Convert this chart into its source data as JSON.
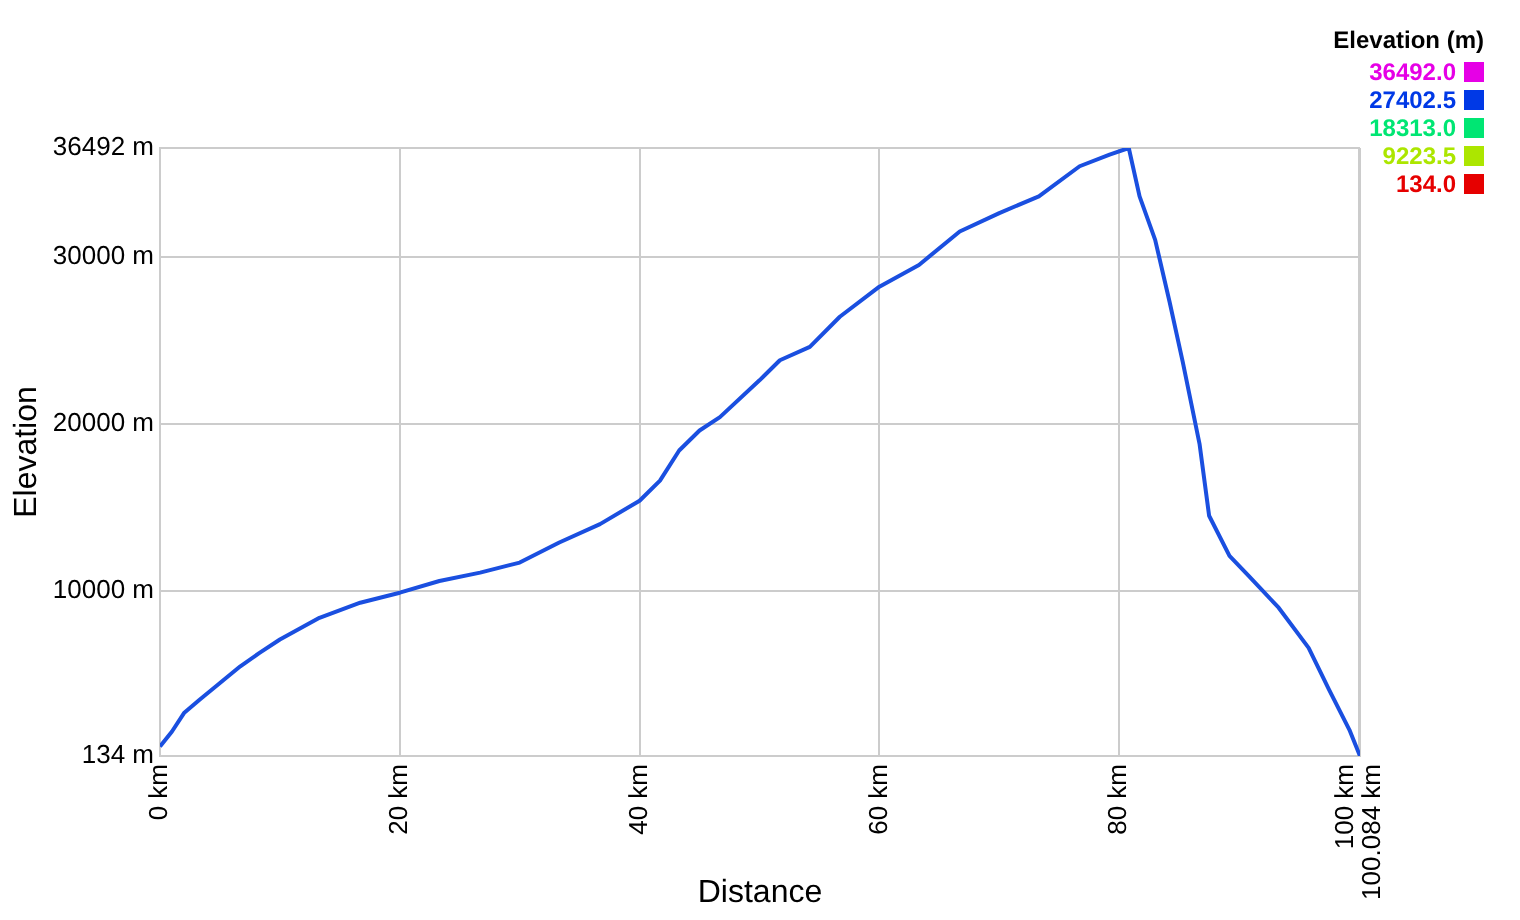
{
  "chart_data": {
    "type": "line",
    "xlabel": "Distance",
    "ylabel": "Elevation",
    "clabel": "Elevation (m)",
    "x": [
      0,
      1,
      2,
      3.3,
      5,
      6.7,
      8.3,
      10,
      13.3,
      16.7,
      20,
      23.3,
      26.7,
      30,
      33.3,
      36.7,
      40,
      41.7,
      43.3,
      45,
      46.7,
      50,
      51.7,
      54.2,
      56.7,
      60,
      63.3,
      66.7,
      70,
      73.3,
      76.7,
      79.2,
      80.8,
      81.7,
      83,
      84.2,
      85.3,
      86.7,
      87.5,
      89.2,
      90.8,
      93.3,
      95.8,
      97.5,
      99.2,
      100.084
    ],
    "values": [
      700,
      1600,
      2700,
      3500,
      4500,
      5500,
      6300,
      7100,
      8400,
      9300,
      9900,
      10600,
      11100,
      11700,
      12900,
      14000,
      15400,
      16600,
      18400,
      19600,
      20400,
      22600,
      23800,
      24600,
      26400,
      28200,
      29500,
      31500,
      32600,
      33600,
      35400,
      36100,
      36492,
      33600,
      31000,
      27300,
      23700,
      18800,
      14500,
      12100,
      10900,
      9000,
      6600,
      4100,
      1700,
      134
    ],
    "color": "#1a4fe0",
    "xlim": [
      0,
      100.084
    ],
    "xticks": [
      {
        "value": 0,
        "label": "0 km"
      },
      {
        "value": 20,
        "label": "20 km"
      },
      {
        "value": 40,
        "label": "40 km"
      },
      {
        "value": 60,
        "label": "60 km"
      },
      {
        "value": 80,
        "label": "80 km"
      },
      {
        "value": 100,
        "label": "100 km"
      },
      {
        "value": 100.084,
        "label": "100.084 km"
      }
    ],
    "ylim": [
      134,
      36492
    ],
    "yticks": [
      {
        "value": 134,
        "label": "134 m"
      },
      {
        "value": 10000,
        "label": "10000 m"
      },
      {
        "value": 20000,
        "label": "20000 m"
      },
      {
        "value": 30000,
        "label": "30000 m"
      },
      {
        "value": 36492,
        "label": "36492 m"
      }
    ],
    "clim": [
      134,
      36492
    ],
    "cticks": [
      {
        "value": 36492,
        "label": "36492.0"
      },
      {
        "value": 27402.5,
        "label": "27402.5"
      },
      {
        "value": 18313,
        "label": "18313.0"
      },
      {
        "value": 9223.5,
        "label": "9223.5"
      },
      {
        "value": 134,
        "label": "134.0"
      }
    ],
    "grid": true,
    "marker": "none",
    "line_style": "solid"
  }
}
